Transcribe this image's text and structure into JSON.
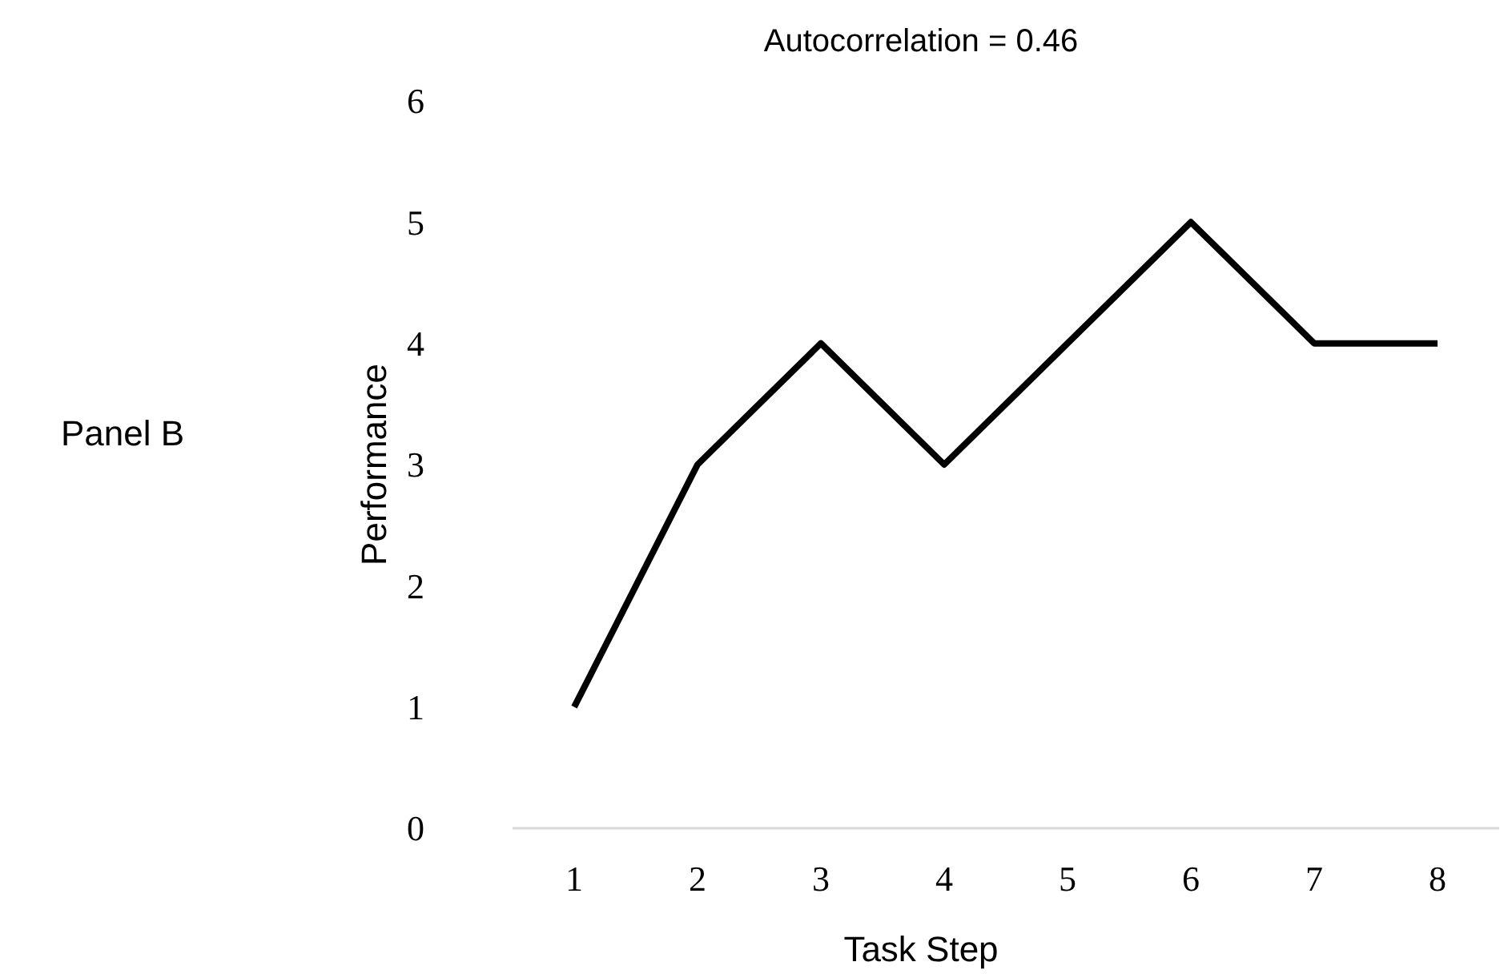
{
  "chart_data": {
    "type": "line",
    "title": "Autocorrelation = 0.46",
    "xlabel": "Task Step",
    "ylabel": "Performance",
    "annotations": [
      "Panel B"
    ],
    "categories": [
      "1",
      "2",
      "3",
      "4",
      "5",
      "6",
      "7",
      "8"
    ],
    "series": [
      {
        "color": "#000000",
        "values": [
          1,
          3,
          4,
          3,
          4,
          5,
          4,
          4
        ]
      }
    ],
    "ylim": [
      0,
      6
    ],
    "yticks": [
      0,
      1,
      2,
      3,
      4,
      5,
      6
    ],
    "grid": false,
    "marker": "none",
    "line_style": "solid"
  }
}
